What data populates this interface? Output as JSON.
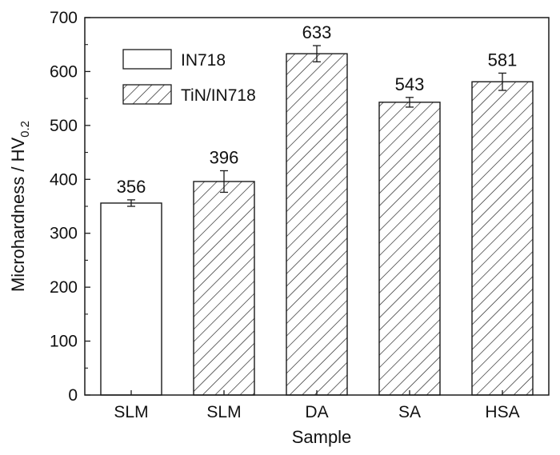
{
  "chart_data": {
    "type": "bar",
    "xlabel": "Sample",
    "ylabel_main": "Microhardness / HV",
    "ylabel_sub": "0.2",
    "ylim": [
      0,
      700
    ],
    "yticks": [
      0,
      100,
      200,
      300,
      400,
      500,
      600,
      700
    ],
    "categories": [
      "SLM",
      "SLM",
      "DA",
      "SA",
      "HSA"
    ],
    "values": [
      356,
      396,
      633,
      543,
      581
    ],
    "errors": [
      6,
      20,
      15,
      9,
      16
    ],
    "series_index": [
      0,
      1,
      1,
      1,
      1
    ],
    "data_labels": [
      "356",
      "396",
      "633",
      "543",
      "581"
    ],
    "legend": {
      "position": "top-left",
      "entries": [
        {
          "name": "IN718",
          "pattern": "plain"
        },
        {
          "name": "TiN/IN718",
          "pattern": "hatched"
        }
      ]
    },
    "grid": false,
    "colors": {
      "bar_fill": "#ffffff",
      "stroke": "#1a1a1a"
    }
  }
}
